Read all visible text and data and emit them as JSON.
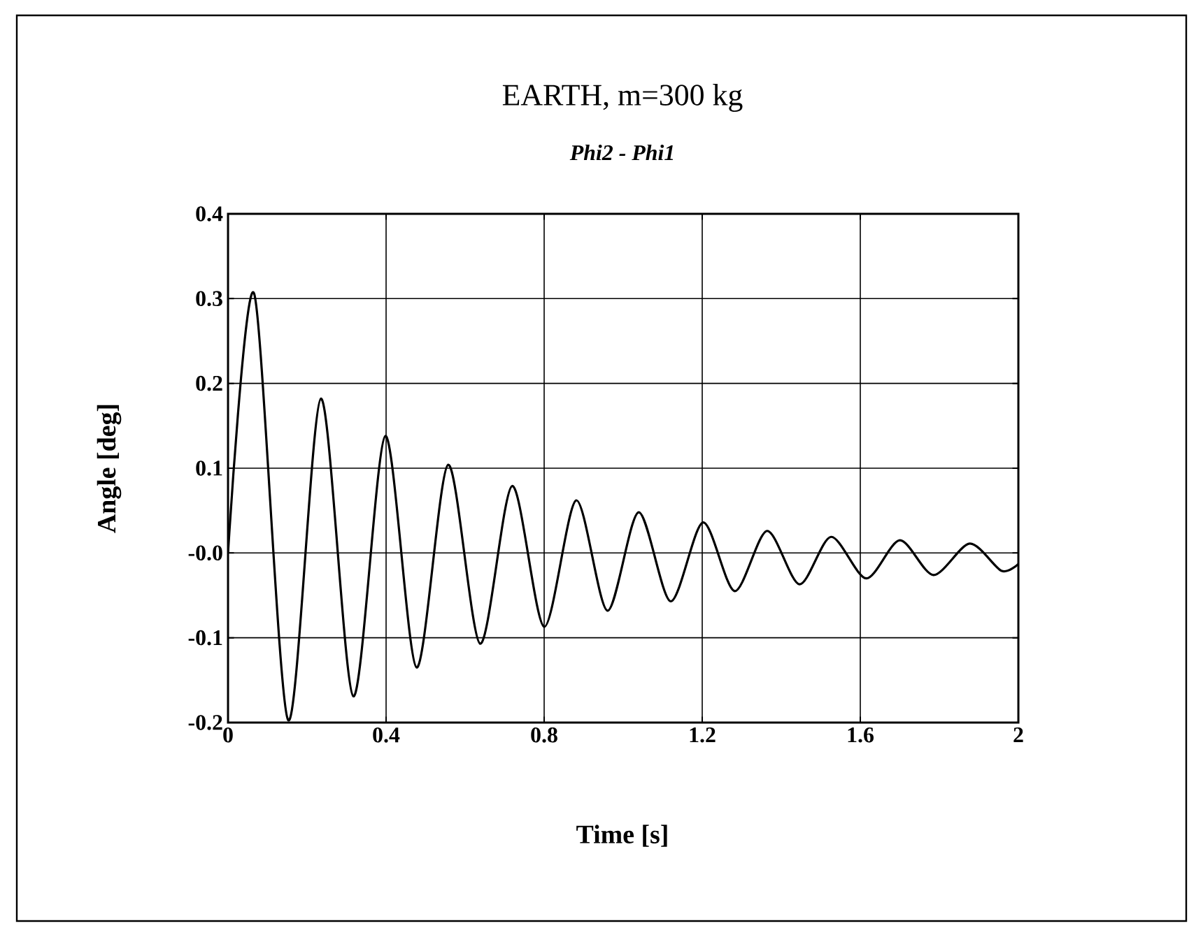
{
  "chart_data": {
    "type": "line",
    "title": "EARTH, m=300 kg",
    "subtitle": "Phi2 - Phi1",
    "xlabel": "Time [s]",
    "ylabel": "Angle [deg]",
    "x": [
      0,
      0.066,
      0.152,
      0.235,
      0.317,
      0.398,
      0.477,
      0.557,
      0.638,
      0.719,
      0.8,
      0.881,
      0.96,
      1.039,
      1.12,
      1.202,
      1.282,
      1.364,
      1.446,
      1.526,
      1.615,
      1.7,
      1.785,
      1.877,
      1.957,
      2.0
    ],
    "series": [
      {
        "color": "#000000",
        "values": [
          0,
          0.306,
          -0.197,
          0.182,
          -0.169,
          0.138,
          -0.135,
          0.104,
          -0.107,
          0.079,
          -0.087,
          0.062,
          -0.068,
          0.048,
          -0.057,
          0.036,
          -0.045,
          0.026,
          -0.037,
          0.019,
          -0.03,
          0.015,
          -0.026,
          0.011,
          -0.021,
          -0.013
        ]
      }
    ],
    "xlim": [
      0,
      2
    ],
    "ylim": [
      -0.2,
      0.4
    ],
    "xticks": [
      0,
      0.4,
      0.8,
      1.2,
      1.6,
      2
    ],
    "yticks": [
      -0.2,
      -0.1,
      {
        "value": 0,
        "label": "-0.0"
      },
      0.1,
      0.2,
      0.3,
      0.4
    ],
    "grid": true,
    "marker": "none",
    "line_style": "solid"
  }
}
